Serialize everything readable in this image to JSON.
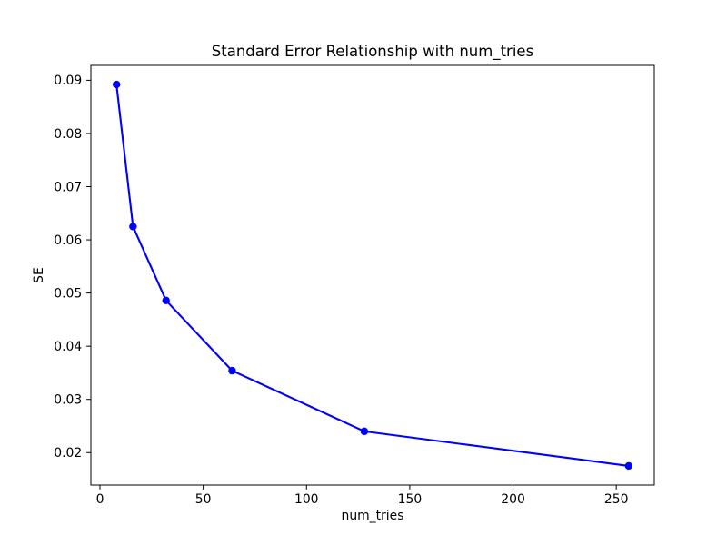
{
  "figure": {
    "background": "#ffffff"
  },
  "chart_data": {
    "type": "line",
    "title": "Standard Error Relationship with num_tries",
    "xlabel": "num_tries",
    "ylabel": "SE",
    "x": [
      8,
      16,
      32,
      64,
      128,
      256
    ],
    "y": [
      0.0892,
      0.0625,
      0.0486,
      0.0354,
      0.024,
      0.0175
    ],
    "line_color": "#0000ff",
    "marker": "circle",
    "grid": false,
    "legend": "none",
    "xlim": [
      -4.4,
      268.4
    ],
    "ylim": [
      0.0139,
      0.0928
    ],
    "xticks": {
      "values": [
        0,
        50,
        100,
        150,
        200,
        250
      ],
      "labels": [
        "0",
        "50",
        "100",
        "150",
        "200",
        "250"
      ]
    },
    "yticks": {
      "values": [
        0.02,
        0.03,
        0.04,
        0.05,
        0.06,
        0.07,
        0.08,
        0.09
      ],
      "labels": [
        "0.02",
        "0.03",
        "0.04",
        "0.05",
        "0.06",
        "0.07",
        "0.08",
        "0.09"
      ]
    }
  }
}
